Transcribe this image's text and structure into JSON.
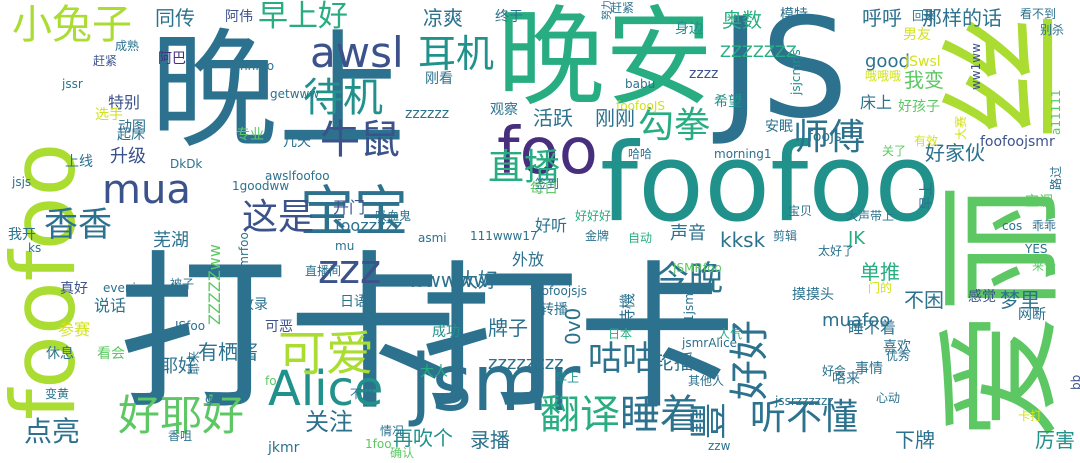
{
  "palette": {
    "purple": "#472f7d",
    "indigo": "#3b528b",
    "blue": "#2c728e",
    "teal": "#21918c",
    "sea": "#27ad81",
    "green": "#5dc863",
    "lime": "#aadc32",
    "yellow": "#d2e21b"
  },
  "words": [
    {
      "text": "晚上"
    },
    {
      "text": "打卡"
    },
    {
      "text": "晚安"
    },
    {
      "text": "JS"
    },
    {
      "text": "foofoo"
    },
    {
      "text": "爱丽"
    },
    {
      "text": "打卡"
    },
    {
      "text": "丝"
    },
    {
      "text": "foofoo"
    },
    {
      "text": "jsmr"
    },
    {
      "text": "宝宝"
    },
    {
      "text": "foo"
    },
    {
      "text": "Alice"
    },
    {
      "text": "可爱"
    },
    {
      "text": "小兔子"
    },
    {
      "text": "awsl"
    },
    {
      "text": "mua"
    },
    {
      "text": "好耶好"
    },
    {
      "text": "待机"
    },
    {
      "text": "耳机"
    },
    {
      "text": "早上好"
    },
    {
      "text": "牛鼠"
    },
    {
      "text": "这是"
    },
    {
      "text": "香香"
    },
    {
      "text": "直播"
    },
    {
      "text": "勾拳"
    },
    {
      "text": "师傅"
    },
    {
      "text": "zzz"
    },
    {
      "text": "今晚"
    },
    {
      "text": "翻译"
    },
    {
      "text": "睡着"
    },
    {
      "text": "豐"
    },
    {
      "text": "听不懂"
    },
    {
      "text": "咕咕"
    },
    {
      "text": "好好"
    },
    {
      "text": "点亮"
    },
    {
      "text": "下牌"
    },
    {
      "text": "厉害"
    },
    {
      "text": "再吹个"
    },
    {
      "text": "录播"
    },
    {
      "text": "关注"
    },
    {
      "text": "凉爽"
    },
    {
      "text": "同传"
    },
    {
      "text": "阿伟"
    },
    {
      "text": "终于"
    },
    {
      "text": "身边"
    },
    {
      "text": "奥数"
    },
    {
      "text": "呼呼"
    },
    {
      "text": "那样的话"
    },
    {
      "text": "阿巴"
    },
    {
      "text": "特别"
    },
    {
      "text": "动图"
    },
    {
      "text": "起床"
    },
    {
      "text": "升级"
    },
    {
      "text": "专业"
    },
    {
      "text": "几天"
    },
    {
      "text": "活跃"
    },
    {
      "text": "刚刚"
    },
    {
      "text": "ZZZZZZZ"
    },
    {
      "text": "zzzz"
    },
    {
      "text": "good"
    },
    {
      "text": "我变"
    },
    {
      "text": "床上"
    },
    {
      "text": "安眠"
    },
    {
      "text": "希望"
    },
    {
      "text": "好孩子"
    },
    {
      "text": "fooJs"
    },
    {
      "text": "foofoojsmr"
    },
    {
      "text": "好家伙"
    },
    {
      "text": "刚看"
    },
    {
      "text": "zzzzzz"
    },
    {
      "text": "观察"
    },
    {
      "text": "开门"
    },
    {
      "text": "foozzzzz"
    },
    {
      "text": "芜湖"
    },
    {
      "text": "JK"
    },
    {
      "text": "kksk"
    },
    {
      "text": "声音"
    },
    {
      "text": "外放"
    },
    {
      "text": "好听"
    },
    {
      "text": "单推"
    },
    {
      "text": "wwwww"
    },
    {
      "text": "大好"
    },
    {
      "text": "日语"
    },
    {
      "text": "不困"
    },
    {
      "text": "梦里"
    },
    {
      "text": "感觉"
    },
    {
      "text": "牌子"
    },
    {
      "text": "有栖酱"
    },
    {
      "text": "耶好"
    },
    {
      "text": "zzzzzzzz"
    },
    {
      "text": "轮播"
    },
    {
      "text": "转播"
    },
    {
      "text": "muafoo"
    },
    {
      "text": "摸摸头"
    },
    {
      "text": "睡不着"
    },
    {
      "text": "网断"
    },
    {
      "text": "喜欢"
    },
    {
      "text": "事情"
    },
    {
      "text": "咯来"
    },
    {
      "text": "真好"
    },
    {
      "text": "说话"
    },
    {
      "text": "收录"
    },
    {
      "text": "休息"
    },
    {
      "text": "看会"
    },
    {
      "text": "成功"
    },
    {
      "text": "日本"
    },
    {
      "text": "人气"
    },
    {
      "text": "金牌"
    },
    {
      "text": "自动"
    },
    {
      "text": "剪辑"
    },
    {
      "text": "每日"
    },
    {
      "text": "早上"
    },
    {
      "text": "乖乖"
    },
    {
      "text": "被子"
    },
    {
      "text": "参赛"
    },
    {
      "text": "我开"
    },
    {
      "text": "ks"
    },
    {
      "text": "jsjs"
    },
    {
      "text": "上线"
    },
    {
      "text": "jssr"
    },
    {
      "text": "hhfoo"
    },
    {
      "text": "getwww"
    },
    {
      "text": "awslfoofoo"
    },
    {
      "text": "DkDk"
    },
    {
      "text": "1goodww"
    },
    {
      "text": "吸血鬼"
    },
    {
      "text": "mu"
    },
    {
      "text": "asmi"
    },
    {
      "text": "111www17"
    },
    {
      "text": "1jsmr"
    },
    {
      "text": "太好了"
    },
    {
      "text": "YES"
    },
    {
      "text": "来个"
    },
    {
      "text": "cos"
    },
    {
      "text": "空调"
    },
    {
      "text": "宝贝"
    },
    {
      "text": "大声带上"
    },
    {
      "text": "哈哈"
    },
    {
      "text": "morning1"
    },
    {
      "text": "签到"
    },
    {
      "text": "evening"
    },
    {
      "text": "JSfoo"
    },
    {
      "text": "ZZZZZww"
    },
    {
      "text": "jsmrzzzzzjsmrfoo"
    },
    {
      "text": "耶来"
    },
    {
      "text": "可恶"
    },
    {
      "text": "直播间"
    },
    {
      "text": "待機"
    },
    {
      "text": "0v0"
    },
    {
      "text": "foofoojsjs"
    },
    {
      "text": "大人"
    },
    {
      "text": "不用"
    },
    {
      "text": "jsmrAlice"
    },
    {
      "text": "其他人"
    },
    {
      "text": "变黄"
    },
    {
      "text": "fo"
    },
    {
      "text": "gif"
    },
    {
      "text": "jkmr"
    },
    {
      "text": "1foo"
    },
    {
      "text": "情况"
    },
    {
      "text": "确认"
    },
    {
      "text": "zzw"
    },
    {
      "text": "jssrzzzzzz"
    },
    {
      "text": "卡打"
    },
    {
      "text": "bb"
    },
    {
      "text": "心动"
    },
    {
      "text": "好会"
    },
    {
      "text": "优秀"
    },
    {
      "text": "门的"
    },
    {
      "text": "JSMRfoo"
    },
    {
      "text": "成熟"
    },
    {
      "text": "赶紧"
    },
    {
      "text": "选手"
    },
    {
      "text": "JSwsl"
    },
    {
      "text": "babu"
    },
    {
      "text": "foofooJS"
    },
    {
      "text": "哦哦哦"
    },
    {
      "text": "jsjcmrjs"
    },
    {
      "text": "男友"
    },
    {
      "text": "ww1ww"
    },
    {
      "text": "回来"
    },
    {
      "text": "看不到"
    },
    {
      "text": "别杀"
    },
    {
      "text": "a11111"
    },
    {
      "text": "路过"
    },
    {
      "text": "大赛"
    },
    {
      "text": "模特"
    },
    {
      "text": "赶紧"
    },
    {
      "text": "努力"
    },
    {
      "text": "有效"
    },
    {
      "text": "早上"
    },
    {
      "text": "关了"
    },
    {
      "text": "香咀"
    },
    {
      "text": "好好好"
    }
  ]
}
